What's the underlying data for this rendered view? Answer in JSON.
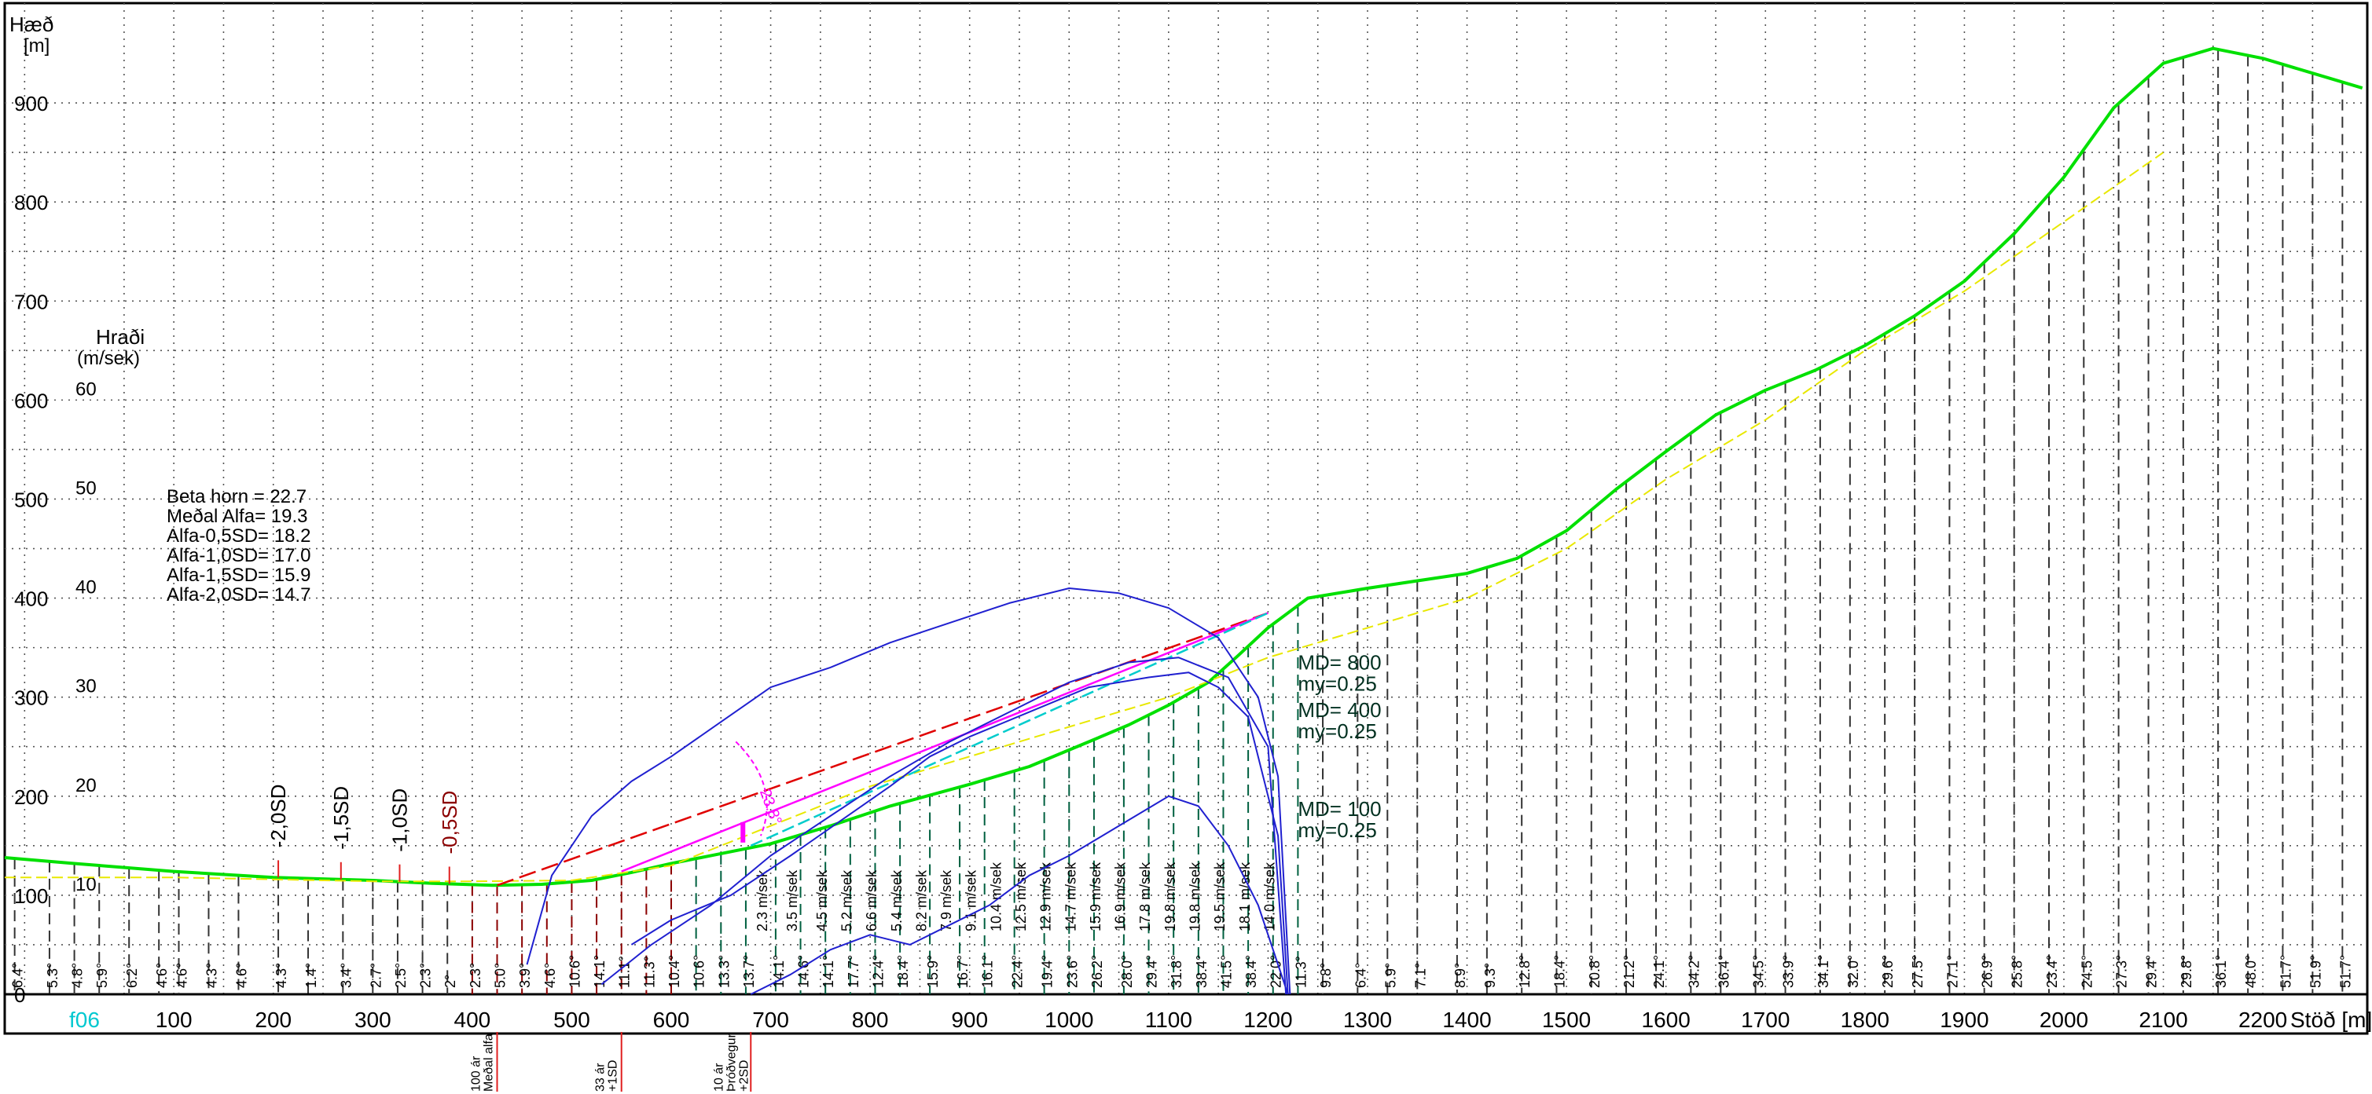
{
  "chart_data": {
    "type": "line",
    "title": "",
    "xlabel": "Stöð [m]",
    "ylabel": "Hæð\n[m]",
    "speed_axis_label": "Hraði\n(m/sek)",
    "xlim": [
      -70,
      2305
    ],
    "ylim": [
      0,
      950
    ],
    "speed_ticks": [
      10,
      20,
      30,
      40,
      50,
      60
    ],
    "profile_id": "f06",
    "x_ticks": [
      100,
      200,
      300,
      400,
      500,
      600,
      700,
      800,
      900,
      1000,
      1100,
      1200,
      1300,
      1400,
      1500,
      1600,
      1700,
      1800,
      1900,
      2000,
      2100,
      2200
    ],
    "y_ticks": [
      0,
      100,
      200,
      300,
      400,
      500,
      600,
      700,
      800,
      900
    ],
    "stats": [
      "Beta horn = 22.7",
      "Meðal Alfa= 19.3",
      "Alfa-0,5SD= 18.2",
      "Alfa-1,0SD= 17.0",
      "Alfa-1,5SD= 15.9",
      "Alfa-2,0SD= 14.7"
    ],
    "sd_markers": [
      {
        "label": "-2,0SD",
        "x": 205,
        "color": "#000000"
      },
      {
        "label": "-1,5SD",
        "x": 268,
        "color": "#000000"
      },
      {
        "label": "-1,0SD",
        "x": 327,
        "color": "#000000"
      },
      {
        "label": "-0,5SD",
        "x": 377,
        "color": "#8b0000"
      }
    ],
    "runout_markers": [
      {
        "label": "100 ár\nMeðal alfa",
        "x": 425
      },
      {
        "label": "33 ár\n+1SD",
        "x": 550
      },
      {
        "label": "10 ár\nÞróðvegur\n+2SD",
        "x": 680
      }
    ],
    "md_labels": [
      {
        "label": "MD= 800",
        "sub": "my=0.25",
        "x": 1230,
        "y": 328
      },
      {
        "label": "MD= 400",
        "sub": "my=0.25",
        "x": 1230,
        "y": 280
      },
      {
        "label": "MD= 100",
        "sub": "my=0.25",
        "x": 1230,
        "y": 180
      }
    ],
    "angle_annotation": "23.8°",
    "series": [
      {
        "name": "",
        "style": "terrain",
        "color": "#00e000",
        "x": [
          -70,
          0,
          100,
          200,
          300,
          360,
          420,
          470,
          520,
          560,
          600,
          650,
          700,
          760,
          820,
          900,
          960,
          1020,
          1060,
          1100,
          1140,
          1170,
          1200,
          1240,
          1300,
          1400,
          1450,
          1500,
          1550,
          1600,
          1650,
          1700,
          1750,
          1800,
          1850,
          1900,
          1950,
          2000,
          2050,
          2100,
          2150,
          2200,
          2250,
          2300
        ],
        "y": [
          138,
          132,
          124,
          118,
          115,
          112,
          110,
          111,
          115,
          123,
          132,
          142,
          152,
          170,
          190,
          212,
          230,
          255,
          272,
          292,
          315,
          342,
          370,
          400,
          410,
          425,
          440,
          468,
          510,
          548,
          585,
          610,
          630,
          655,
          685,
          720,
          768,
          825,
          895,
          940,
          955,
          945,
          930,
          915
        ]
      },
      {
        "name": "",
        "style": "yellow-dashed",
        "color": "#e8e800",
        "x": [
          -70,
          100,
          200,
          300,
          400,
          500,
          600,
          700,
          800,
          900,
          1000,
          1100,
          1200,
          1300,
          1400,
          1500,
          1600,
          1700,
          1800,
          1900,
          2000,
          2100
        ],
        "y": [
          118,
          118,
          116,
          114,
          114,
          115,
          130,
          170,
          210,
          240,
          270,
          300,
          340,
          370,
          400,
          450,
          520,
          580,
          650,
          710,
          780,
          850
        ]
      },
      {
        "name": "",
        "style": "red-dashed",
        "color": "#e00000",
        "x": [
          425,
          1200
        ],
        "y": [
          110,
          385
        ]
      },
      {
        "name": "",
        "style": "magenta",
        "color": "#ff00ff",
        "x": [
          550,
          1200
        ],
        "y": [
          124,
          385
        ]
      },
      {
        "name": "",
        "style": "cyan-dashed",
        "color": "#00cccc",
        "x": [
          680,
          1200
        ],
        "y": [
          150,
          385
        ]
      },
      {
        "name": "",
        "style": "speed",
        "color": "#2020d0",
        "x": [
          455,
          480,
          520,
          560,
          600,
          650,
          700,
          760,
          820,
          880,
          940,
          1000,
          1050,
          1100,
          1150,
          1190,
          1210,
          1222
        ],
        "y": [
          3,
          12,
          18,
          21.5,
          24,
          27.5,
          31,
          33,
          35.5,
          37.5,
          39.5,
          41,
          40.5,
          39,
          36,
          30,
          22,
          0
        ]
      },
      {
        "name": "",
        "style": "speed",
        "color": "#2020d0",
        "x": [
          530,
          580,
          640,
          700,
          760,
          820,
          880,
          940,
          1000,
          1060,
          1110,
          1160,
          1200,
          1218
        ],
        "y": [
          1,
          5,
          9,
          14,
          18,
          22,
          25.5,
          28.5,
          31.5,
          33.5,
          34,
          32,
          25,
          0
        ]
      },
      {
        "name": "",
        "style": "speed",
        "color": "#2020d0",
        "x": [
          560,
          600,
          660,
          720,
          770,
          820,
          860,
          900,
          960,
          1020,
          1080,
          1120,
          1150,
          1180,
          1210,
          1220
        ],
        "y": [
          5,
          7.5,
          10,
          14,
          17.5,
          21,
          24,
          26,
          28.5,
          31,
          32,
          32.5,
          31,
          28,
          16,
          0
        ]
      },
      {
        "name": "",
        "style": "speed",
        "color": "#2020d0",
        "x": [
          680,
          720,
          760,
          800,
          840,
          880,
          920,
          960,
          1000,
          1050,
          1100,
          1130,
          1160,
          1190,
          1220
        ],
        "y": [
          0,
          2,
          4.5,
          6,
          5,
          7,
          9,
          12,
          14,
          17,
          20,
          19,
          15,
          9,
          0
        ]
      }
    ],
    "slope_angles": {
      "x": [
        -60,
        -25,
        0,
        25,
        55,
        85,
        105,
        135,
        165,
        205,
        235,
        270,
        300,
        325,
        350,
        375,
        400,
        425,
        450,
        475,
        500,
        525,
        550,
        575,
        600,
        625,
        650,
        675,
        705,
        730,
        755,
        780,
        805,
        830,
        860,
        890,
        915,
        945,
        975,
        1000,
        1025,
        1055,
        1080,
        1105,
        1130,
        1155,
        1180,
        1205,
        1230,
        1255,
        1290,
        1320,
        1350,
        1390,
        1420,
        1455,
        1490,
        1525,
        1560,
        1590,
        1625,
        1655,
        1690,
        1720,
        1755,
        1785,
        1820,
        1850,
        1885,
        1920,
        1950,
        1985,
        2020,
        2055,
        2085,
        2120,
        2155,
        2185,
        2220,
        2250,
        2280
      ],
      "labels": [
        "6.4°",
        "5.3°",
        "4.8°",
        "5.9°",
        "6.2°",
        "4.6°",
        "4.6°",
        "4.3°",
        "4.6°",
        "4.3°",
        "1.4°",
        "3.4°",
        "2.7°",
        "2.5°",
        "2.3°",
        "2°",
        "2.3°",
        "5.0°",
        "3.9°",
        "4.6°",
        "10.6°",
        "14.1°",
        "11.1°",
        "11.3°",
        "10.4°",
        "10.6°",
        "13.3°",
        "13.7°",
        "14.1°",
        "14.6°",
        "14.1°",
        "17.7°",
        "12.4°",
        "18.4°",
        "15.9°",
        "16.7°",
        "16.1°",
        "22.4°",
        "19.4°",
        "23.6°",
        "26.2°",
        "28.0°",
        "29.4°",
        "31.8°",
        "38.4°",
        "41.5°",
        "38.4°",
        "22.0°",
        "11.3°",
        "9.8°",
        "6.4°",
        "5.9°",
        "7.1°",
        "8.9°",
        "9.3°",
        "12.8°",
        "18.4°",
        "20.8°",
        "21.2°",
        "24.1°",
        "34.2°",
        "36.4°",
        "34.5°",
        "33.9°",
        "34.1°",
        "32.0°",
        "29.6°",
        "27.5°",
        "27.1°",
        "26.9°",
        "25.8°",
        "23.4°",
        "24.5°",
        "27.3°",
        "29.4°",
        "29.8°",
        "36.1°",
        "48.0°",
        "51.7°",
        "51.9°",
        "51.7°"
      ]
    },
    "speed_labels": {
      "x": [
        690,
        720,
        750,
        775,
        800,
        825,
        850,
        875,
        900,
        925,
        950,
        975,
        1000,
        1025,
        1050,
        1075,
        1100,
        1125,
        1150,
        1175,
        1200
      ],
      "labels": [
        "2.3 m/sek",
        "3.5 m/sek",
        "4.5 m/sek",
        "5.2 m/sek",
        "6.6 m/sek",
        "5.4 m/sek",
        "8.2 m/sek",
        "7.9 m/sek",
        "9.1 m/sek",
        "10.4 m/sek",
        "12.5 m/sek",
        "12.9 m/sek",
        "14.7 m/sek",
        "15.9 m/sek",
        "16.9 m/sek",
        "17.8 m/sek",
        "19.8 m/sek",
        "19.8 m/sek",
        "19.5 m/sek",
        "18.1 m/sek",
        "14.0 m/sek"
      ]
    },
    "grid": true,
    "legend": "none"
  }
}
